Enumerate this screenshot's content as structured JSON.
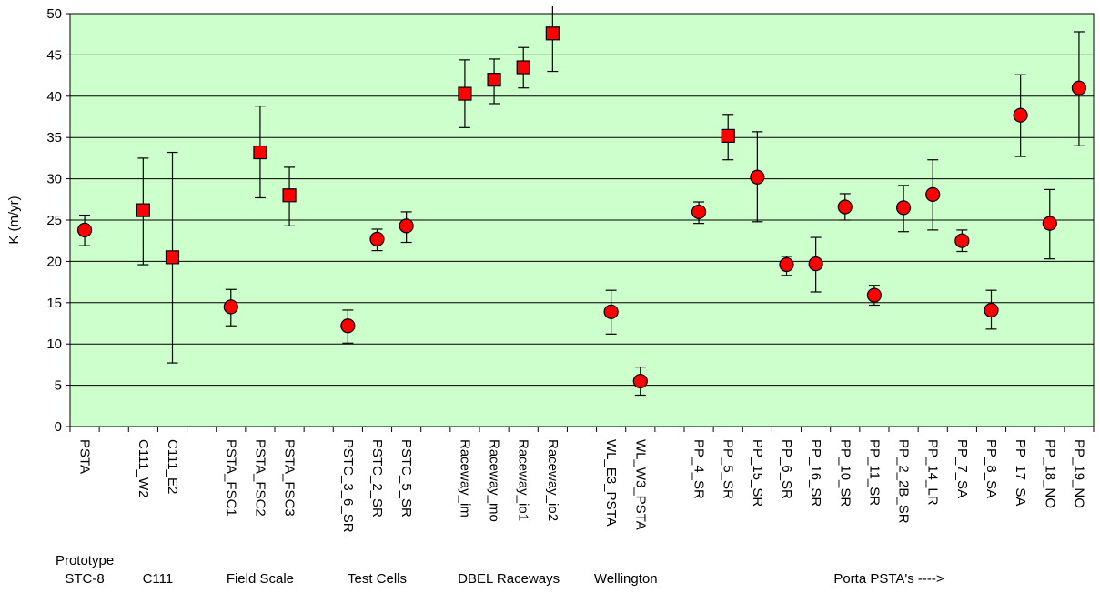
{
  "chart_data": {
    "type": "scatter",
    "title": "",
    "xlabel": "",
    "ylabel": "K (m/yr)",
    "ylim": [
      0,
      50
    ],
    "ytick_step": 5,
    "grid": true,
    "plot_background": "#ccffcc",
    "marker_color": "#ff0000",
    "categories": [
      "PSTA",
      "",
      "C111_W2",
      "C111_E2",
      "",
      "PSTA_FSC1",
      "PSTA_FSC2",
      "PSTA_FSC3",
      "",
      "PSTC_3_6_SR",
      "PSTC_2_SR",
      "PSTC_5_SR",
      "",
      "Raceway_im",
      "Raceway_mo",
      "Raceway_io1",
      "Raceway_io2",
      "",
      "WL_E3_PSTA",
      "WL_W3_PSTA",
      "",
      "PP_4_SR",
      "PP_5_SR",
      "PP_15_SR",
      "PP_6_SR",
      "PP_16_SR",
      "PP_10_SR",
      "PP_11_SR",
      "PP_2_2B_SR",
      "PP_14_LR",
      "PP_7_SA",
      "PP_8_SA",
      "PP_17_SA",
      "PP_18_NO",
      "PP_19_NO"
    ],
    "points": [
      {
        "label": "PSTA",
        "value": 23.8,
        "low": 21.9,
        "high": 25.6,
        "marker": "circle"
      },
      {
        "label": "C111_W2",
        "value": 26.2,
        "low": 19.6,
        "high": 32.5,
        "marker": "square"
      },
      {
        "label": "C111_E2",
        "value": 20.5,
        "low": 7.7,
        "high": 33.2,
        "marker": "square"
      },
      {
        "label": "PSTA_FSC1",
        "value": 14.5,
        "low": 12.2,
        "high": 16.6,
        "marker": "circle"
      },
      {
        "label": "PSTA_FSC2",
        "value": 33.2,
        "low": 27.7,
        "high": 38.8,
        "marker": "square"
      },
      {
        "label": "PSTA_FSC3",
        "value": 28.0,
        "low": 24.3,
        "high": 31.4,
        "marker": "square"
      },
      {
        "label": "PSTC_3_6_SR",
        "value": 12.2,
        "low": 10.1,
        "high": 14.1,
        "marker": "circle"
      },
      {
        "label": "PSTC_2_SR",
        "value": 22.7,
        "low": 21.3,
        "high": 23.9,
        "marker": "circle"
      },
      {
        "label": "PSTC_5_SR",
        "value": 24.3,
        "low": 22.3,
        "high": 26.0,
        "marker": "circle"
      },
      {
        "label": "Raceway_im",
        "value": 40.3,
        "low": 36.2,
        "high": 44.4,
        "marker": "square"
      },
      {
        "label": "Raceway_mo",
        "value": 42.0,
        "low": 39.1,
        "high": 44.5,
        "marker": "square"
      },
      {
        "label": "Raceway_io1",
        "value": 43.5,
        "low": 41.0,
        "high": 45.9,
        "marker": "square"
      },
      {
        "label": "Raceway_io2",
        "value": 47.6,
        "low": 43.0,
        "high": 51.0,
        "marker": "square"
      },
      {
        "label": "WL_E3_PSTA",
        "value": 13.9,
        "low": 11.2,
        "high": 16.5,
        "marker": "circle"
      },
      {
        "label": "WL_W3_PSTA",
        "value": 5.5,
        "low": 3.8,
        "high": 7.2,
        "marker": "circle"
      },
      {
        "label": "PP_4_SR",
        "value": 26.0,
        "low": 24.6,
        "high": 27.2,
        "marker": "circle"
      },
      {
        "label": "PP_5_SR",
        "value": 35.2,
        "low": 32.3,
        "high": 37.8,
        "marker": "square"
      },
      {
        "label": "PP_15_SR",
        "value": 30.2,
        "low": 24.8,
        "high": 35.7,
        "marker": "circle"
      },
      {
        "label": "PP_6_SR",
        "value": 19.6,
        "low": 18.3,
        "high": 20.6,
        "marker": "circle"
      },
      {
        "label": "PP_16_SR",
        "value": 19.7,
        "low": 16.3,
        "high": 22.9,
        "marker": "circle"
      },
      {
        "label": "PP_10_SR",
        "value": 26.6,
        "low": 25.0,
        "high": 28.2,
        "marker": "circle"
      },
      {
        "label": "PP_11_SR",
        "value": 15.9,
        "low": 14.7,
        "high": 17.1,
        "marker": "circle"
      },
      {
        "label": "PP_2_2B_SR",
        "value": 26.5,
        "low": 23.6,
        "high": 29.2,
        "marker": "circle"
      },
      {
        "label": "PP_14_LR",
        "value": 28.1,
        "low": 23.8,
        "high": 32.3,
        "marker": "circle"
      },
      {
        "label": "PP_7_SA",
        "value": 22.5,
        "low": 21.2,
        "high": 23.8,
        "marker": "circle"
      },
      {
        "label": "PP_8_SA",
        "value": 14.1,
        "low": 11.8,
        "high": 16.5,
        "marker": "circle"
      },
      {
        "label": "PP_17_SA",
        "value": 37.7,
        "low": 32.7,
        "high": 42.6,
        "marker": "circle"
      },
      {
        "label": "PP_18_NO",
        "value": 24.6,
        "low": 20.3,
        "high": 28.7,
        "marker": "circle"
      },
      {
        "label": "PP_19_NO",
        "value": 41.0,
        "low": 34.0,
        "high": 47.8,
        "marker": "circle"
      }
    ],
    "groups": [
      {
        "label": "Prototype\nSTC-8",
        "from": "PSTA",
        "to": "PSTA"
      },
      {
        "label": "C111",
        "from": "C111_W2",
        "to": "C111_E2"
      },
      {
        "label": "Field Scale",
        "from": "PSTA_FSC1",
        "to": "PSTA_FSC3"
      },
      {
        "label": "Test Cells",
        "from": "PSTC_3_6_SR",
        "to": "PSTC_5_SR"
      },
      {
        "label": "DBEL Raceways",
        "from": "Raceway_im",
        "to": "Raceway_io2"
      },
      {
        "label": "Wellington",
        "from": "WL_E3_PSTA",
        "to": "WL_W3_PSTA"
      },
      {
        "label": "Porta PSTA's ---->",
        "from": "PP_4_SR",
        "to": "PP_19_NO"
      }
    ]
  }
}
